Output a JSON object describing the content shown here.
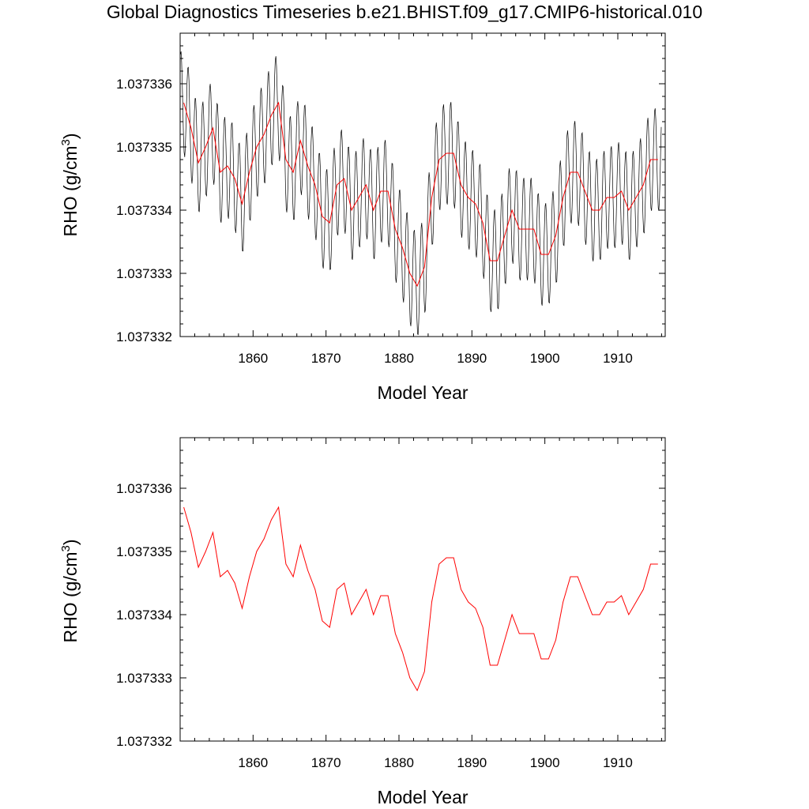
{
  "title": "Global Diagnostics Timeseries b.e21.BHIST.f09_g17.CMIP6-historical.010",
  "colors": {
    "monthly": "#000000",
    "annual": "#ff0000"
  },
  "chart_data": [
    {
      "type": "line",
      "xlabel": "Model Year",
      "ylabel": "RHO (g/cm",
      "ylabel_sup": "3",
      "ylabel_close": ")",
      "xlim": [
        1850,
        1916.5
      ],
      "ylim": [
        1.037332,
        1.0373368
      ],
      "x_ticks": [
        1860,
        1870,
        1880,
        1890,
        1900,
        1910
      ],
      "x_tick_labels": [
        "1860",
        "1870",
        "1880",
        "1890",
        "1900",
        "1910"
      ],
      "y_ticks": [
        1.037332,
        1.037333,
        1.037334,
        1.037335,
        1.037336
      ],
      "y_tick_labels": [
        "1.037332",
        "1.037333",
        "1.037334",
        "1.037335",
        "1.037336"
      ],
      "monthly_cycle_amplitude": 8.2e-07,
      "series": [
        {
          "role": "monthly",
          "color": "#000000",
          "derived_from": "annual"
        },
        {
          "role": "annual",
          "color": "#ff0000",
          "x": [
            1850.5,
            1851.5,
            1852.5,
            1853.5,
            1854.5,
            1855.5,
            1856.5,
            1857.5,
            1858.5,
            1859.5,
            1860.5,
            1861.5,
            1862.5,
            1863.5,
            1864.5,
            1865.5,
            1866.5,
            1867.5,
            1868.5,
            1869.5,
            1870.5,
            1871.5,
            1872.5,
            1873.5,
            1874.5,
            1875.5,
            1876.5,
            1877.5,
            1878.5,
            1879.5,
            1880.5,
            1881.5,
            1882.5,
            1883.5,
            1884.5,
            1885.5,
            1886.5,
            1887.5,
            1888.5,
            1889.5,
            1890.5,
            1891.5,
            1892.5,
            1893.5,
            1894.5,
            1895.5,
            1896.5,
            1897.5,
            1898.5,
            1899.5,
            1900.5,
            1901.5,
            1902.5,
            1903.5,
            1904.5,
            1905.5,
            1906.5,
            1907.5,
            1908.5,
            1909.5,
            1910.5,
            1911.5,
            1912.5,
            1913.5,
            1914.5,
            1915.5
          ],
          "values": [
            1.0373357,
            1.0373353,
            1.03733475,
            1.037335,
            1.0373353,
            1.0373346,
            1.0373347,
            1.0373345,
            1.0373341,
            1.0373346,
            1.037335,
            1.0373352,
            1.0373355,
            1.0373357,
            1.0373348,
            1.0373346,
            1.0373351,
            1.0373347,
            1.0373344,
            1.0373339,
            1.0373338,
            1.0373344,
            1.0373345,
            1.037334,
            1.0373342,
            1.0373344,
            1.037334,
            1.0373343,
            1.0373343,
            1.0373337,
            1.0373334,
            1.037333,
            1.0373328,
            1.0373331,
            1.0373342,
            1.0373348,
            1.0373349,
            1.0373349,
            1.0373344,
            1.0373342,
            1.0373341,
            1.0373338,
            1.0373332,
            1.0373332,
            1.0373336,
            1.037334,
            1.0373337,
            1.0373337,
            1.0373337,
            1.0373333,
            1.0373333,
            1.0373336,
            1.0373342,
            1.0373346,
            1.0373346,
            1.0373343,
            1.037334,
            1.037334,
            1.0373342,
            1.0373342,
            1.0373343,
            1.037334,
            1.0373342,
            1.0373344,
            1.0373348,
            1.0373348
          ]
        }
      ]
    },
    {
      "type": "line",
      "xlabel": "Model Year",
      "ylabel": "RHO (g/cm",
      "ylabel_sup": "3",
      "ylabel_close": ")",
      "xlim": [
        1850,
        1916.5
      ],
      "ylim": [
        1.037332,
        1.0373368
      ],
      "x_ticks": [
        1860,
        1870,
        1880,
        1890,
        1900,
        1910
      ],
      "x_tick_labels": [
        "1860",
        "1870",
        "1880",
        "1890",
        "1900",
        "1910"
      ],
      "y_ticks": [
        1.037332,
        1.037333,
        1.037334,
        1.037335,
        1.037336
      ],
      "y_tick_labels": [
        "1.037332",
        "1.037333",
        "1.037334",
        "1.037335",
        "1.037336"
      ],
      "series": [
        {
          "role": "annual",
          "color": "#ff0000",
          "same_as_panel": 0
        }
      ]
    }
  ]
}
